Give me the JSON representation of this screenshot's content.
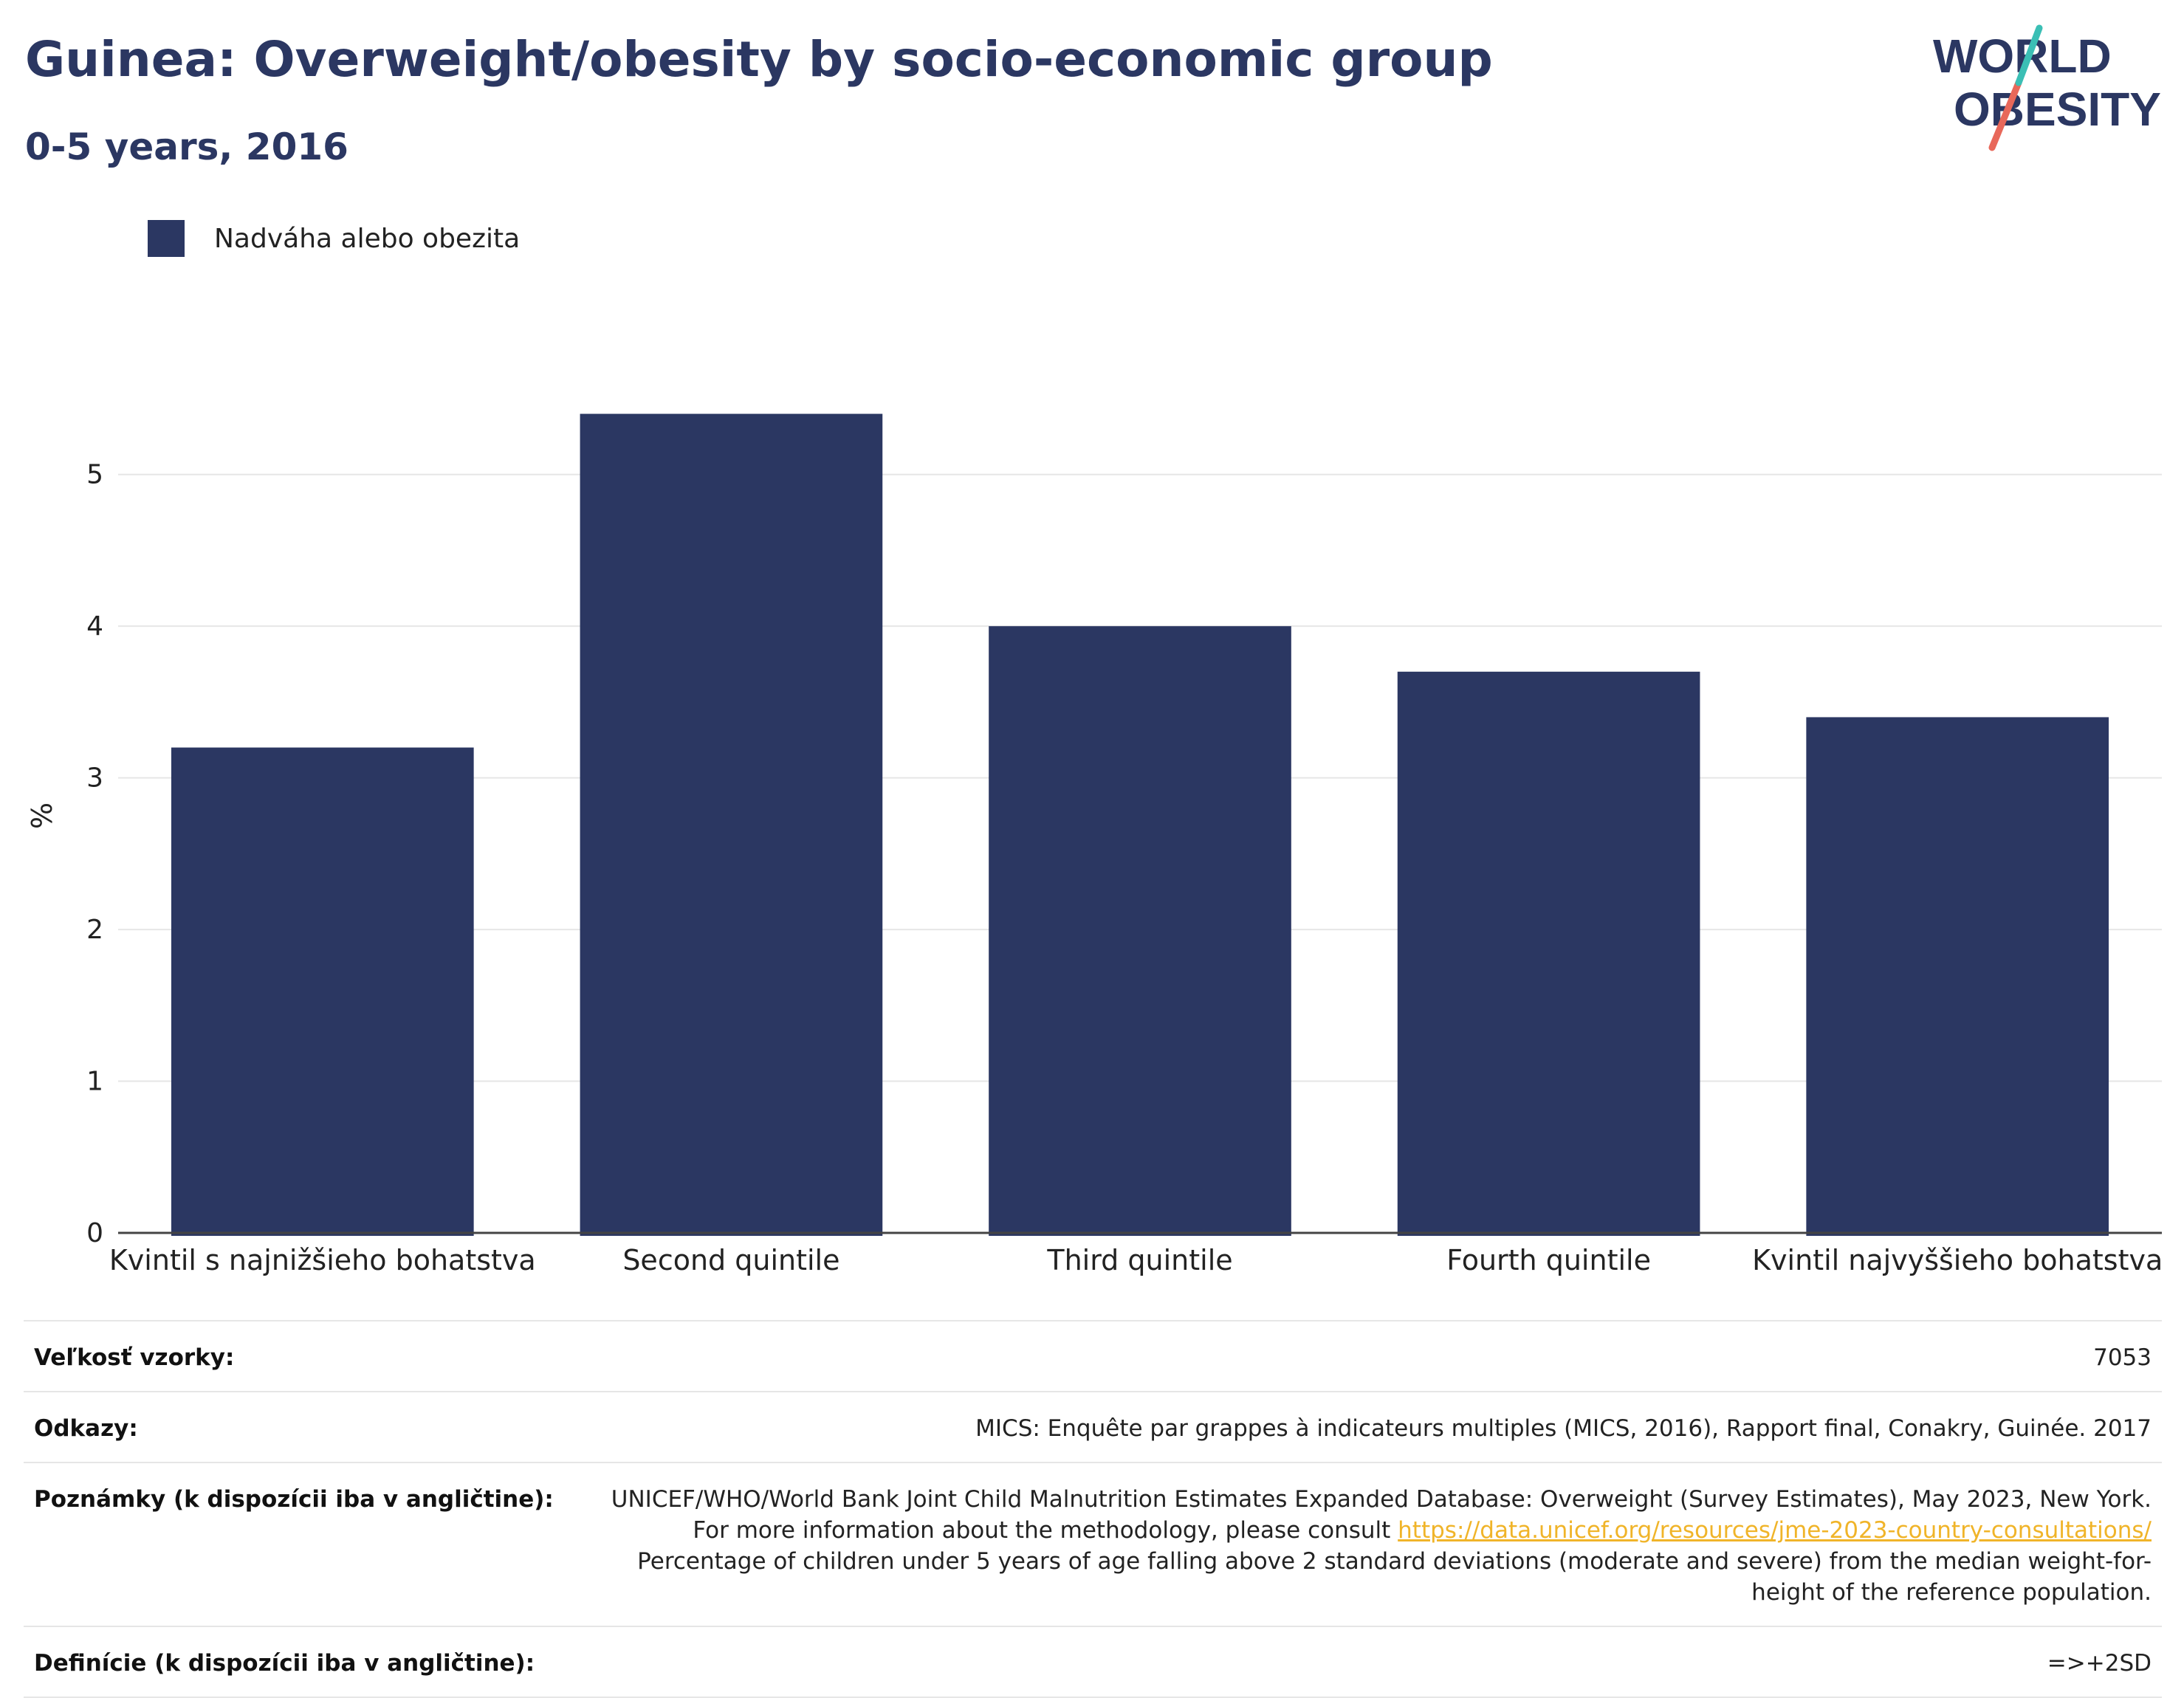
{
  "header": {
    "title": "Guinea: Overweight/obesity by socio-economic group",
    "subtitle": "0-5 years, 2016"
  },
  "logo": {
    "line1": "WORLD",
    "line2": "OBESITY",
    "colors": {
      "text": "#2b3762",
      "slash_top": "#3bbfb5",
      "slash_bottom": "#e8685a"
    }
  },
  "legend": {
    "label": "Nadváha alebo obezita",
    "color": "#2b3762"
  },
  "chart_data": {
    "type": "bar",
    "categories": [
      "Kvintil s najnižšieho bohatstva",
      "Second quintile",
      "Third quintile",
      "Fourth quintile",
      "Kvintil najvyššieho bohatstva"
    ],
    "series": [
      {
        "name": "Nadváha alebo obezita",
        "values": [
          3.2,
          5.4,
          4.0,
          3.7,
          3.4
        ]
      }
    ],
    "ylabel": "%",
    "ylim": [
      0,
      5.5
    ],
    "yticks": [
      0,
      1,
      2,
      3,
      4,
      5
    ],
    "grid": true,
    "legend_position": "top-left",
    "bar_color": "#2b3762"
  },
  "info": {
    "sample_size": {
      "label": "Veľkosť vzorky:",
      "value": "7053"
    },
    "references": {
      "label": "Odkazy:",
      "value": "MICS: Enquête par grappes à indicateurs multiples (MICS, 2016), Rapport final, Conakry, Guinée. 2017"
    },
    "notes": {
      "label": "Poznámky (k dispozícii iba v angličtine):",
      "text_before": "UNICEF/WHO/World Bank Joint Child Malnutrition Estimates Expanded Database: Overweight (Survey Estimates), May 2023, New York. For more information about the methodology, please consult ",
      "link": "https://data.unicef.org/resources/jme-2023-country-consultations/",
      "text_after": " Percentage of children under 5 years of age falling above 2 standard deviations (moderate and severe) from the median weight-for-height of the reference population."
    },
    "definitions": {
      "label": "Definície (k dispozícii iba v angličtine):",
      "value": "=>+2SD"
    }
  }
}
